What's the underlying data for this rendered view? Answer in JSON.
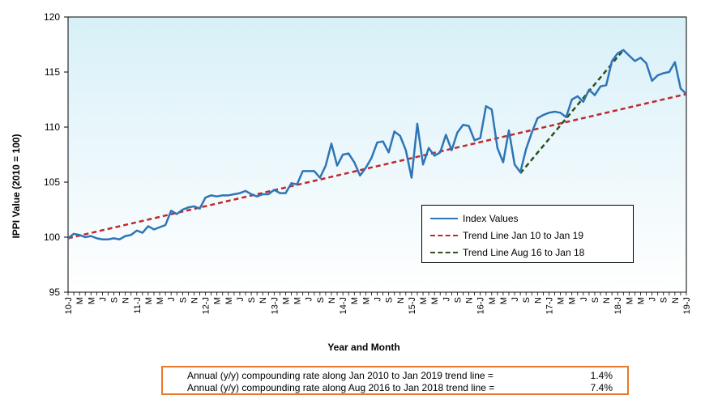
{
  "chart_data": {
    "type": "line",
    "title": "",
    "xlabel": "Year and Month",
    "ylabel": "IPPI Value (2010 = 100)",
    "ylim": [
      95,
      120
    ],
    "yticks": [
      95,
      100,
      105,
      110,
      115,
      120
    ],
    "xlim": [
      0,
      108
    ],
    "x_tick_labels": [
      {
        "i": 0,
        "label": "10-J"
      },
      {
        "i": 2,
        "label": "M"
      },
      {
        "i": 4,
        "label": "M"
      },
      {
        "i": 6,
        "label": "J"
      },
      {
        "i": 8,
        "label": "S"
      },
      {
        "i": 10,
        "label": "N"
      },
      {
        "i": 12,
        "label": "11-J"
      },
      {
        "i": 14,
        "label": "M"
      },
      {
        "i": 16,
        "label": "M"
      },
      {
        "i": 18,
        "label": "J"
      },
      {
        "i": 20,
        "label": "S"
      },
      {
        "i": 22,
        "label": "N"
      },
      {
        "i": 24,
        "label": "12-J"
      },
      {
        "i": 26,
        "label": "M"
      },
      {
        "i": 28,
        "label": "M"
      },
      {
        "i": 30,
        "label": "J"
      },
      {
        "i": 32,
        "label": "S"
      },
      {
        "i": 34,
        "label": "N"
      },
      {
        "i": 36,
        "label": "13-J"
      },
      {
        "i": 38,
        "label": "M"
      },
      {
        "i": 40,
        "label": "M"
      },
      {
        "i": 42,
        "label": "J"
      },
      {
        "i": 44,
        "label": "S"
      },
      {
        "i": 46,
        "label": "N"
      },
      {
        "i": 48,
        "label": "14-J"
      },
      {
        "i": 50,
        "label": "M"
      },
      {
        "i": 52,
        "label": "M"
      },
      {
        "i": 54,
        "label": "J"
      },
      {
        "i": 56,
        "label": "S"
      },
      {
        "i": 58,
        "label": "N"
      },
      {
        "i": 60,
        "label": "15-J"
      },
      {
        "i": 62,
        "label": "M"
      },
      {
        "i": 64,
        "label": "M"
      },
      {
        "i": 66,
        "label": "J"
      },
      {
        "i": 68,
        "label": "S"
      },
      {
        "i": 70,
        "label": "N"
      },
      {
        "i": 72,
        "label": "16-J"
      },
      {
        "i": 74,
        "label": "M"
      },
      {
        "i": 76,
        "label": "M"
      },
      {
        "i": 78,
        "label": "J"
      },
      {
        "i": 80,
        "label": "S"
      },
      {
        "i": 82,
        "label": "N"
      },
      {
        "i": 84,
        "label": "17-J"
      },
      {
        "i": 86,
        "label": "M"
      },
      {
        "i": 88,
        "label": "M"
      },
      {
        "i": 90,
        "label": "J"
      },
      {
        "i": 92,
        "label": "S"
      },
      {
        "i": 94,
        "label": "N"
      },
      {
        "i": 96,
        "label": "18-J"
      },
      {
        "i": 98,
        "label": "M"
      },
      {
        "i": 100,
        "label": "M"
      },
      {
        "i": 102,
        "label": "J"
      },
      {
        "i": 104,
        "label": "S"
      },
      {
        "i": 106,
        "label": "N"
      },
      {
        "i": 108,
        "label": "19-J"
      }
    ],
    "grid": false,
    "legend_position": "lower-right",
    "series": [
      {
        "name": "Index Values",
        "style": "solid",
        "color": "#2e75b6",
        "values": [
          99.9,
          100.3,
          100.2,
          100.0,
          100.1,
          99.9,
          99.8,
          99.8,
          99.9,
          99.8,
          100.1,
          100.2,
          100.6,
          100.4,
          101.0,
          100.7,
          100.9,
          101.1,
          102.4,
          102.1,
          102.5,
          102.7,
          102.8,
          102.6,
          103.6,
          103.8,
          103.7,
          103.8,
          103.8,
          103.9,
          104.0,
          104.2,
          103.9,
          103.7,
          103.9,
          103.9,
          104.3,
          104.0,
          104.0,
          104.9,
          104.8,
          106.0,
          106.0,
          106.0,
          105.4,
          106.5,
          108.5,
          106.5,
          107.5,
          107.6,
          106.8,
          105.6,
          106.3,
          107.2,
          108.6,
          108.7,
          107.7,
          109.6,
          109.2,
          107.9,
          105.4,
          110.3,
          106.6,
          108.1,
          107.4,
          107.7,
          109.3,
          107.9,
          109.5,
          110.2,
          110.1,
          108.8,
          109.0,
          111.9,
          111.6,
          108.1,
          106.8,
          109.7,
          106.6,
          105.9,
          108.0,
          109.5,
          110.8,
          111.1,
          111.3,
          111.4,
          111.3,
          110.9,
          112.5,
          112.8,
          112.3,
          113.4,
          112.9,
          113.7,
          113.8,
          116.0,
          116.7,
          117.0,
          116.5,
          116.0,
          116.3,
          115.8,
          114.2,
          114.7,
          114.9,
          115.0,
          115.9,
          113.5,
          113.0
        ]
      },
      {
        "name": "Trend Line Jan 10 to Jan 19",
        "style": "dashed",
        "color": "#c0282d",
        "points": [
          [
            0,
            99.9
          ],
          [
            108,
            113.0
          ]
        ]
      },
      {
        "name": "Trend Line Aug 16 to Jan 18",
        "style": "dashed",
        "color": "#2f4f1f",
        "points": [
          [
            79,
            105.8
          ],
          [
            97,
            117.0
          ]
        ]
      }
    ],
    "annotations": [
      {
        "text": "Annual (y/y) compounding rate along Jan 2010 to Jan 2019 trend line =",
        "value": "1.4%"
      },
      {
        "text": "Annual (y/y) compounding rate along Aug 2016 to Jan 2018 trend line =",
        "value": "7.4%"
      }
    ]
  },
  "colors": {
    "plot_gradient_top": "#d8f0f8",
    "plot_gradient_bottom": "#ffffff",
    "note_border": "#e8782a"
  }
}
